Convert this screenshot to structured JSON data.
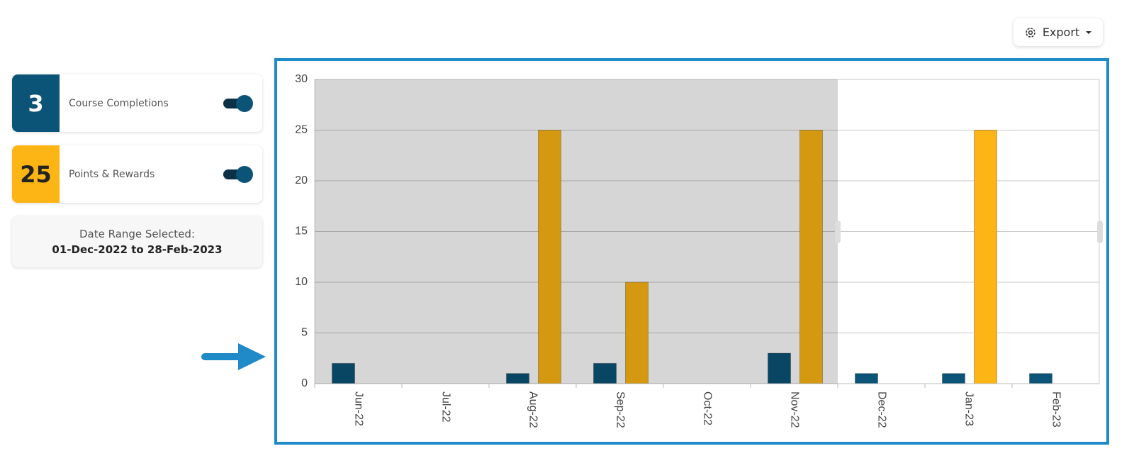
{
  "export_button": "Export",
  "cards": [
    {
      "value": 3,
      "label": "Course Completions"
    },
    {
      "value": 25,
      "label": "Points & Rewards"
    }
  ],
  "date_range": {
    "title": "Date Range Selected:",
    "value": "01-Dec-2022 to 28-Feb-2023"
  },
  "chart_data": {
    "type": "bar",
    "categories": [
      "Jun-22",
      "Jul-22",
      "Aug-22",
      "Sep-22",
      "Oct-22",
      "Nov-22",
      "Dec-22",
      "Jan-23",
      "Feb-23"
    ],
    "series": [
      {
        "color": "#0b5477",
        "values": [
          2,
          0,
          1,
          2,
          0,
          3,
          1,
          1,
          1
        ]
      },
      {
        "color": "#fdb515",
        "values": [
          0,
          0,
          25,
          10,
          0,
          25,
          0,
          25,
          0
        ]
      }
    ],
    "ylim": [
      0,
      30
    ],
    "yticks": [
      0,
      5,
      10,
      15,
      20,
      25,
      30
    ],
    "grid": true
  }
}
